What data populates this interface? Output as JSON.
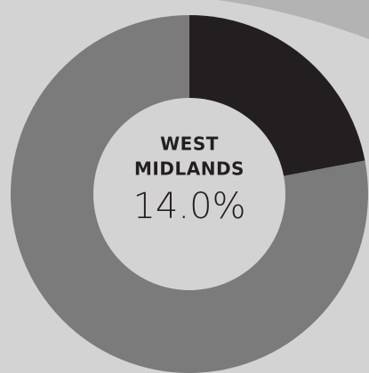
{
  "chart_data": {
    "type": "donut",
    "values": [
      22,
      78
    ],
    "colors": [
      "#231f20",
      "#7b7b7b"
    ],
    "center_title_lines": [
      "WEST",
      "MIDLANDS"
    ],
    "center_value": "14.0%"
  }
}
